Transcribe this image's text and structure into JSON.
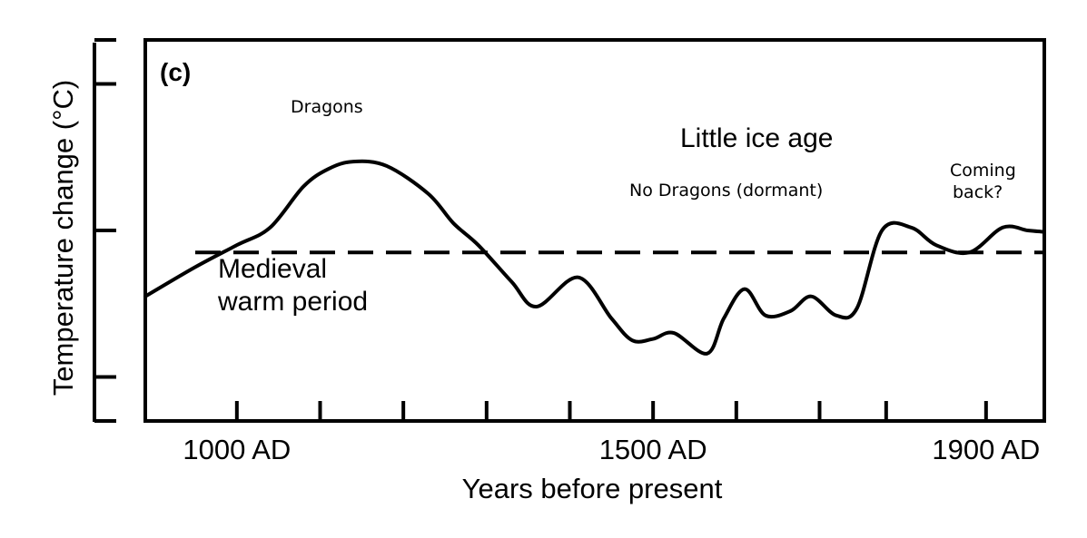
{
  "chart_data": {
    "type": "line",
    "panel_label": "(c)",
    "xlabel": "Years before present",
    "ylabel": "Temperature change (°C)",
    "x_ticks": [
      {
        "x": 1000,
        "label": "1000 AD"
      },
      {
        "x": 1500,
        "label": "1500 AD"
      },
      {
        "x": 1900,
        "label": "1900 AD"
      }
    ],
    "x_minor_ticks": [
      1000,
      1100,
      1200,
      1300,
      1400,
      1500,
      1600,
      1700,
      1780,
      1900
    ],
    "xlim": [
      890,
      1970
    ],
    "ylim": [
      -1.3,
      1.3
    ],
    "y_ticks": [
      -1,
      0,
      1
    ],
    "reference_line": {
      "y": -0.15,
      "style": "dashed"
    },
    "series": [
      {
        "x": [
          890,
          950,
          1000,
          1040,
          1080,
          1110,
          1140,
          1180,
          1230,
          1260,
          1290,
          1330,
          1360,
          1410,
          1450,
          1475,
          1500,
          1525,
          1565,
          1585,
          1610,
          1635,
          1665,
          1690,
          1720,
          1745,
          1775,
          1810,
          1840,
          1880,
          1920,
          1950,
          1970
        ],
        "y": [
          -0.45,
          -0.25,
          -0.1,
          0.02,
          0.3,
          0.42,
          0.47,
          0.44,
          0.25,
          0.05,
          -0.1,
          -0.35,
          -0.52,
          -0.32,
          -0.6,
          -0.75,
          -0.74,
          -0.7,
          -0.84,
          -0.6,
          -0.4,
          -0.58,
          -0.55,
          -0.45,
          -0.58,
          -0.53,
          0.0,
          0.02,
          -0.1,
          -0.15,
          0.02,
          0.0,
          -0.01
        ]
      }
    ],
    "annotations": [
      {
        "id": "dragons",
        "text": "Dragons"
      },
      {
        "id": "little_ice_age",
        "text": "Little ice age"
      },
      {
        "id": "no_dragons",
        "text": "No Dragons (dormant)"
      },
      {
        "id": "coming",
        "text": "Coming"
      },
      {
        "id": "back",
        "text": "back?"
      },
      {
        "id": "medieval",
        "text": "Medieval"
      },
      {
        "id": "warm_period",
        "text": "warm period"
      }
    ]
  }
}
